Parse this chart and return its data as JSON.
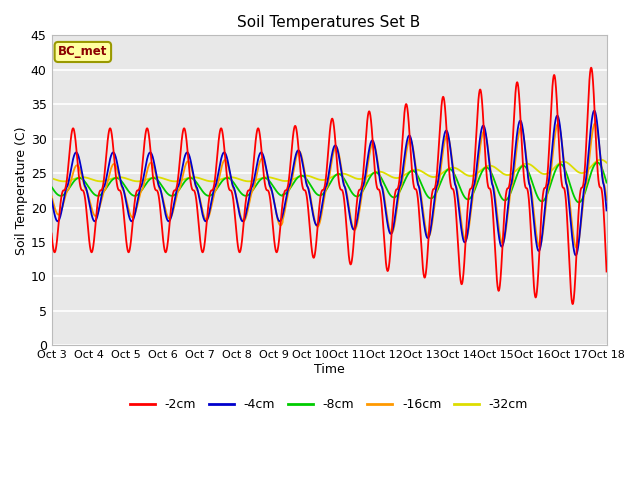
{
  "title": "Soil Temperatures Set B",
  "xlabel": "Time",
  "ylabel": "Soil Temperature (C)",
  "ylim": [
    0,
    45
  ],
  "yticks": [
    0,
    5,
    10,
    15,
    20,
    25,
    30,
    35,
    40,
    45
  ],
  "xlim_start": 0,
  "xlim_end": 360,
  "x_tick_labels": [
    "Oct 3",
    "Oct 4",
    "Oct 5",
    "Oct 6",
    "Oct 7",
    "Oct 8",
    "Oct 9",
    "Oct 10",
    "Oct 11",
    "Oct 12",
    "Oct 13",
    "Oct 14",
    "Oct 15",
    "Oct 16",
    "Oct 17",
    "Oct 18"
  ],
  "x_tick_positions": [
    0,
    24,
    48,
    72,
    96,
    120,
    144,
    168,
    192,
    216,
    240,
    264,
    288,
    312,
    336,
    360
  ],
  "annotation_text": "BC_met",
  "line_colors": [
    "#ff0000",
    "#0000cc",
    "#00cc00",
    "#ff9900",
    "#dddd00"
  ],
  "line_labels": [
    "-2cm",
    "-4cm",
    "-8cm",
    "-16cm",
    "-32cm"
  ],
  "fig_bg_color": "#ffffff",
  "plot_bg_color": "#e8e8e8",
  "grid_color": "#ffffff"
}
